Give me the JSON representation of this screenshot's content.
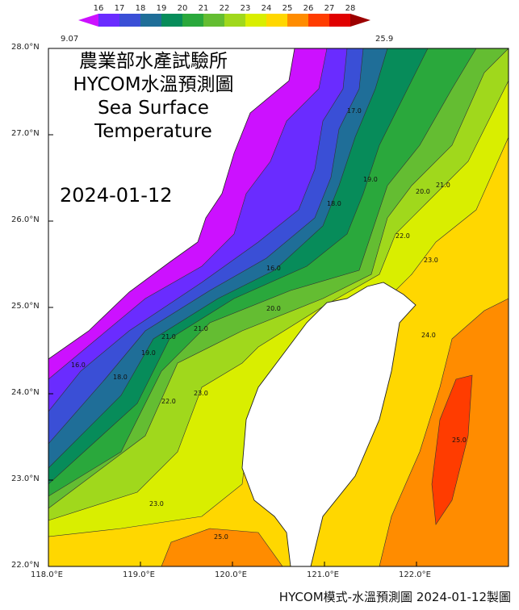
{
  "title_lines": [
    "農業部水產試驗所",
    "HYCOM水溫預測圖",
    "Sea Surface",
    "Temperature"
  ],
  "date": "2024-01-12",
  "footer": "HYCOM模式-水溫預測圖 2024-01-12製圖",
  "colorbar": {
    "min_label": "9.07",
    "max_label": "25.9",
    "ticks": [
      "16",
      "17",
      "18",
      "19",
      "20",
      "21",
      "22",
      "23",
      "24",
      "25",
      "26",
      "27",
      "28"
    ],
    "colors": [
      "#cc11ff",
      "#6a2cff",
      "#3a4fd6",
      "#1f6e98",
      "#078c5a",
      "#2aa83c",
      "#64bd32",
      "#a0d81c",
      "#d9ee00",
      "#ffd700",
      "#ff8c00",
      "#ff3c00",
      "#e00000",
      "#9c0000"
    ]
  },
  "axes": {
    "lat_labels": [
      "28.0°N",
      "27.0°N",
      "26.0°N",
      "25.0°N",
      "24.0°N",
      "23.0°N",
      "22.0°N"
    ],
    "lon_labels": [
      "118.0°E",
      "119.0°E",
      "120.0°E",
      "121.0°E",
      "122.0°E"
    ]
  },
  "contour_labels": [
    "16.0",
    "17.0",
    "18.0",
    "19.0",
    "20.0",
    "21.0",
    "22.0",
    "23.0",
    "24.0",
    "25.0"
  ]
}
